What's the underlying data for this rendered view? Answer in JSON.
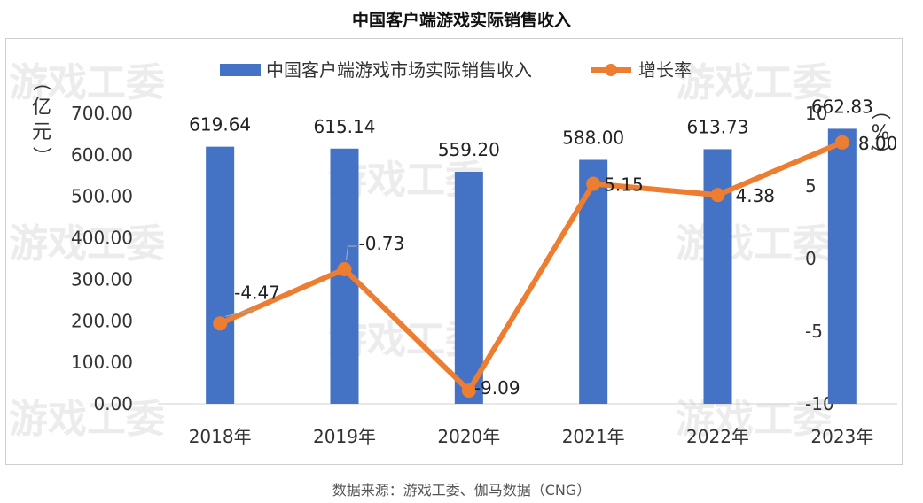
{
  "title": "中国客户端游戏实际销售收入",
  "source": "数据来源：游戏工委、伽马数据（CNG）",
  "watermark": "游戏工委",
  "colors": {
    "bar": "#4472C4",
    "line": "#ED7D31",
    "axis_text": "#333333",
    "label_text": "#222222"
  },
  "left_axis_unit": "（亿元）",
  "right_axis_unit": "（%）",
  "chart_data": {
    "type": "bar",
    "categories": [
      "2018年",
      "2019年",
      "2020年",
      "2021年",
      "2022年",
      "2023年"
    ],
    "series": [
      {
        "name": "中国客户端游戏市场实际销售收入",
        "type": "bar",
        "axis": "left",
        "values": [
          619.64,
          615.14,
          559.2,
          588.0,
          613.73,
          662.83
        ],
        "labels": [
          "619.64",
          "615.14",
          "559.20",
          "588.00",
          "613.73",
          "662.83"
        ]
      },
      {
        "name": "增长率",
        "type": "line",
        "axis": "right",
        "values": [
          -4.47,
          -0.73,
          -9.09,
          5.15,
          4.38,
          8.0
        ],
        "labels": [
          "-4.47",
          "-0.73",
          "-9.09",
          "5.15",
          "4.38",
          "8.00"
        ]
      }
    ],
    "y_left": {
      "min": 0,
      "max": 700,
      "ticks": [
        "0.00",
        "100.00",
        "200.00",
        "300.00",
        "400.00",
        "500.00",
        "600.00",
        "700.00"
      ]
    },
    "y_right": {
      "min": -10,
      "max": 10,
      "ticks": [
        "-10",
        "-5",
        "0",
        "5",
        "10"
      ]
    },
    "legend_position": "top-center",
    "grid": false
  }
}
